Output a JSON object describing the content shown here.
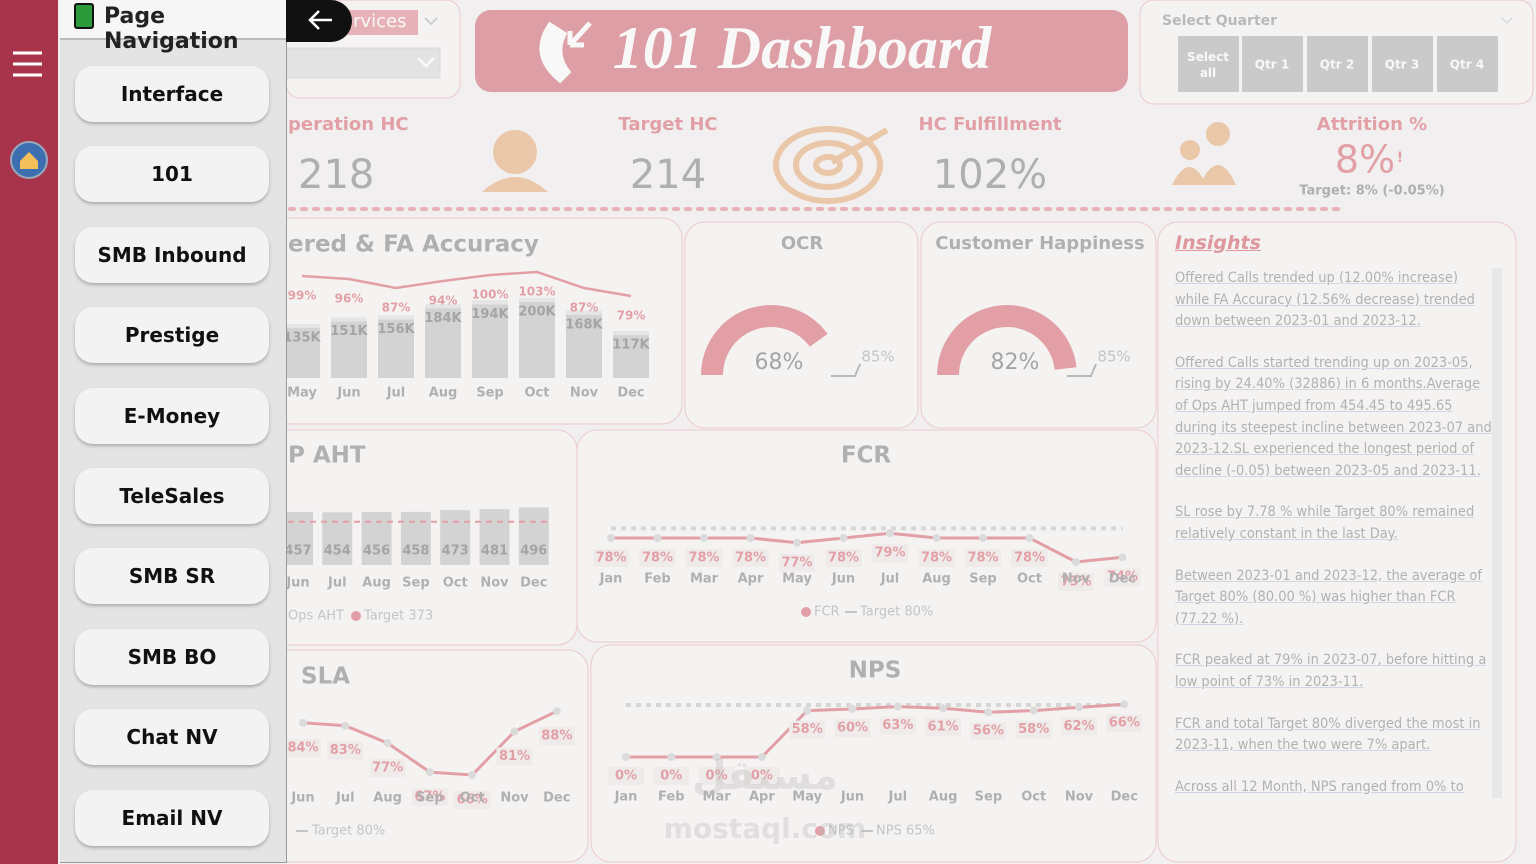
{
  "sidebar_nav": {
    "title": "Page Navigation",
    "items": [
      "Interface",
      "101",
      "SMB Inbound",
      "Prestige",
      "E-Money",
      "TeleSales",
      "SMB SR",
      "SMB BO",
      "Chat NV",
      "Email NV"
    ]
  },
  "header": {
    "title": "101 Dashboard",
    "services_filter": "ervices",
    "quarter_filter": {
      "label": "Select Quarter",
      "options": [
        "Select all",
        "Qtr 1",
        "Qtr 2",
        "Qtr 3",
        "Qtr 4"
      ]
    }
  },
  "kpis": [
    {
      "label": "peration HC",
      "value": "218"
    },
    {
      "label": "Target HC",
      "value": "214"
    },
    {
      "label": "HC Fulfillment",
      "value": "102%"
    },
    {
      "label": "Attrition %",
      "value": "8%",
      "flag": "!",
      "note": "Target: 8% (-0.05%)"
    }
  ],
  "offered_chart": {
    "title": "ered & FA Accuracy",
    "categories": [
      "May",
      "Jun",
      "Jul",
      "Aug",
      "Sep",
      "Oct",
      "Nov",
      "Dec"
    ],
    "values": [
      135000,
      151000,
      156000,
      184000,
      194000,
      200000,
      168000,
      117000
    ],
    "value_labels": [
      "135K",
      "151K",
      "156K",
      "184K",
      "194K",
      "200K",
      "168K",
      "117K"
    ],
    "accuracy_values": [
      99,
      96,
      87,
      94,
      100,
      103,
      87,
      79
    ],
    "accuracy_labels": [
      "99%",
      "96%",
      "87%",
      "94%",
      "100%",
      "103%",
      "87%",
      "79%"
    ]
  },
  "ocr_gauge": {
    "title": "OCR",
    "value": 68,
    "value_label": "68%",
    "target": 85,
    "target_label": "85%"
  },
  "happiness_gauge": {
    "title": "Customer Happiness",
    "value": 82,
    "value_label": "82%",
    "target": 85,
    "target_label": "85%"
  },
  "aht_chart": {
    "title": "P AHT",
    "categories": [
      "Jun",
      "Jul",
      "Aug",
      "Sep",
      "Oct",
      "Nov",
      "Dec"
    ],
    "values": [
      457,
      454,
      456,
      458,
      473,
      481,
      496
    ],
    "target": 373,
    "legend": [
      "Ops AHT",
      "Target 373"
    ]
  },
  "fcr_chart": {
    "title": "FCR",
    "categories": [
      "Jan",
      "Feb",
      "Mar",
      "Apr",
      "May",
      "Jun",
      "Jul",
      "Aug",
      "Sep",
      "Oct",
      "Nov",
      "Dec"
    ],
    "values": [
      78,
      78,
      78,
      78,
      77,
      78,
      79,
      78,
      78,
      78,
      73,
      74
    ],
    "value_labels": [
      "78%",
      "78%",
      "78%",
      "78%",
      "77%",
      "78%",
      "79%",
      "78%",
      "78%",
      "78%",
      "73%",
      "74%"
    ],
    "target": 80,
    "legend": [
      "FCR",
      "Target 80%"
    ]
  },
  "sla_chart": {
    "title": "SLA",
    "categories": [
      "Jun",
      "Jul",
      "Aug",
      "Sep",
      "Oct",
      "Nov",
      "Dec"
    ],
    "values": [
      84,
      83,
      77,
      67,
      66,
      81,
      88
    ],
    "value_labels": [
      "84%",
      "83%",
      "77%",
      "67%",
      "66%",
      "81%",
      "88%"
    ],
    "legend": [
      "Target 80%"
    ]
  },
  "nps_chart": {
    "title": "NPS",
    "categories": [
      "Jan",
      "Feb",
      "Mar",
      "Apr",
      "May",
      "Jun",
      "Jul",
      "Aug",
      "Sep",
      "Oct",
      "Nov",
      "Dec"
    ],
    "values": [
      0,
      0,
      0,
      0,
      58,
      60,
      63,
      61,
      56,
      58,
      62,
      66
    ],
    "value_labels": [
      "0%",
      "0%",
      "0%",
      "0%",
      "58%",
      "60%",
      "63%",
      "61%",
      "56%",
      "58%",
      "62%",
      "66%"
    ],
    "target": 65,
    "legend": [
      "NPS",
      "NPS 65%"
    ]
  },
  "insights": {
    "title": "Insights",
    "paragraphs": [
      "Offered Calls trended up (12.00% increase) while FA Accuracy (12.56% decrease) trended down between 2023-01 and 2023-12.",
      "Offered Calls started trending up on 2023-05, rising by 24.40% (32886) in 6 months.Average of Ops AHT jumped from 454.45 to 495.65 during its steepest incline between 2023-07 and 2023-12.SL experienced the longest period of decline (-0.05) between 2023-05 and 2023-11.",
      "SL rose by 7.78 % while Target 80% remained relatively constant in the last Day.",
      "Between 2023-01 and 2023-12, the average of Target 80% (80.00 %) was higher than FCR (77.22 %).",
      "FCR peaked at 79% in 2023-07, before hitting a low point of 73% in 2023-11.",
      "FCR and total Target 80% diverged the most in 2023-11, when the two were 7% apart.",
      "Across all 12 Month, NPS ranged from 0% to"
    ]
  },
  "watermark": {
    "arabic": "مستقل",
    "latin": "mostaql.com"
  }
}
